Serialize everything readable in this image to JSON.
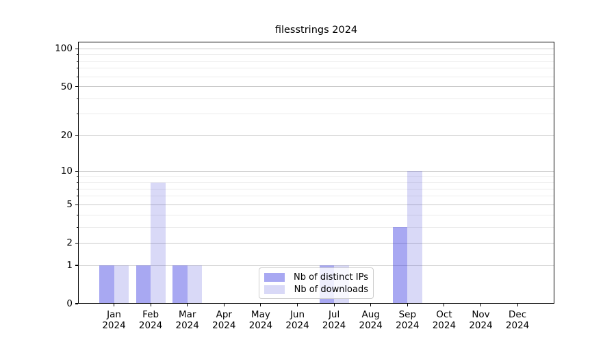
{
  "chart_data": {
    "type": "bar",
    "title": "filesstrings 2024",
    "categories": [
      {
        "month": "Jan",
        "year": "2024"
      },
      {
        "month": "Feb",
        "year": "2024"
      },
      {
        "month": "Mar",
        "year": "2024"
      },
      {
        "month": "Apr",
        "year": "2024"
      },
      {
        "month": "May",
        "year": "2024"
      },
      {
        "month": "Jun",
        "year": "2024"
      },
      {
        "month": "Jul",
        "year": "2024"
      },
      {
        "month": "Aug",
        "year": "2024"
      },
      {
        "month": "Sep",
        "year": "2024"
      },
      {
        "month": "Oct",
        "year": "2024"
      },
      {
        "month": "Nov",
        "year": "2024"
      },
      {
        "month": "Dec",
        "year": "2024"
      }
    ],
    "series": [
      {
        "name": "Nb of distinct IPs",
        "values": [
          1,
          1,
          1,
          0,
          0,
          0,
          1,
          0,
          3,
          0,
          0,
          0
        ],
        "color": "#a8a8f2",
        "fill": "rgba(38,38,222,0.40)"
      },
      {
        "name": "Nb of downloads",
        "values": [
          1,
          8,
          1,
          0,
          0,
          0,
          1,
          0,
          10,
          0,
          0,
          0
        ],
        "color": "#d9d9f6",
        "fill": "rgba(0,0,200,0.15)"
      }
    ],
    "xlabel": "",
    "ylabel": "",
    "y_axis": {
      "scale": "log10(1+v)",
      "ticks": [
        0,
        1,
        2,
        5,
        10,
        20,
        50,
        100
      ],
      "minor_gridlines": [
        3,
        4,
        6,
        7,
        8,
        9,
        30,
        40,
        60,
        70,
        80,
        90
      ],
      "ylim": [
        0,
        114
      ]
    },
    "grid": "horizontal",
    "legend_position": "lower center",
    "colors": {
      "grid_major": "#c9c9c9",
      "grid_minor": "#ebebeb",
      "axis": "#000000",
      "background": "#ffffff",
      "text": "#000000"
    }
  }
}
